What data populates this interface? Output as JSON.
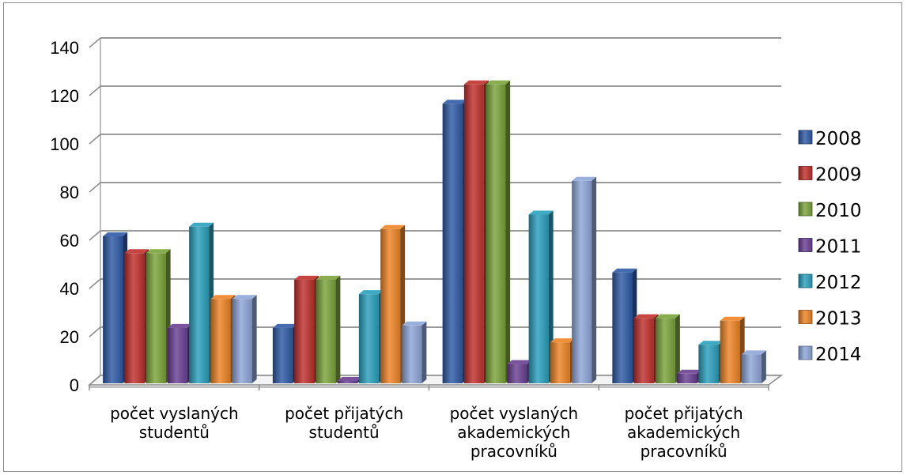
{
  "chart_data": {
    "type": "bar",
    "title": "",
    "xlabel": "",
    "ylabel": "",
    "ylim": [
      0,
      140
    ],
    "yticks": [
      "0",
      "20",
      "40",
      "60",
      "80",
      "100",
      "120",
      "140"
    ],
    "grid": true,
    "legend_position": "right",
    "categories": [
      [
        "počet vyslaných",
        "studentů"
      ],
      [
        "počet přijatých",
        "studentů"
      ],
      [
        "počet vyslaných",
        "akademických",
        "pracovníků"
      ],
      [
        "počet přijatých",
        "akademických",
        "pracovníků"
      ]
    ],
    "series": [
      {
        "name": "2008",
        "color": "#2f5aa6",
        "values": [
          61,
          23,
          116,
          46
        ]
      },
      {
        "name": "2009",
        "color": "#c0302c",
        "values": [
          54,
          43,
          124,
          27
        ]
      },
      {
        "name": "2010",
        "color": "#7aa43a",
        "values": [
          54,
          43,
          124,
          27
        ]
      },
      {
        "name": "2011",
        "color": "#6a3f93",
        "values": [
          23,
          1,
          8,
          4
        ]
      },
      {
        "name": "2012",
        "color": "#2aa0bd",
        "values": [
          65,
          37,
          70,
          16
        ]
      },
      {
        "name": "2013",
        "color": "#ee8425",
        "values": [
          35,
          64,
          17,
          26
        ]
      },
      {
        "name": "2014",
        "color": "#8ea6d8",
        "values": [
          35,
          24,
          84,
          12
        ]
      }
    ]
  }
}
